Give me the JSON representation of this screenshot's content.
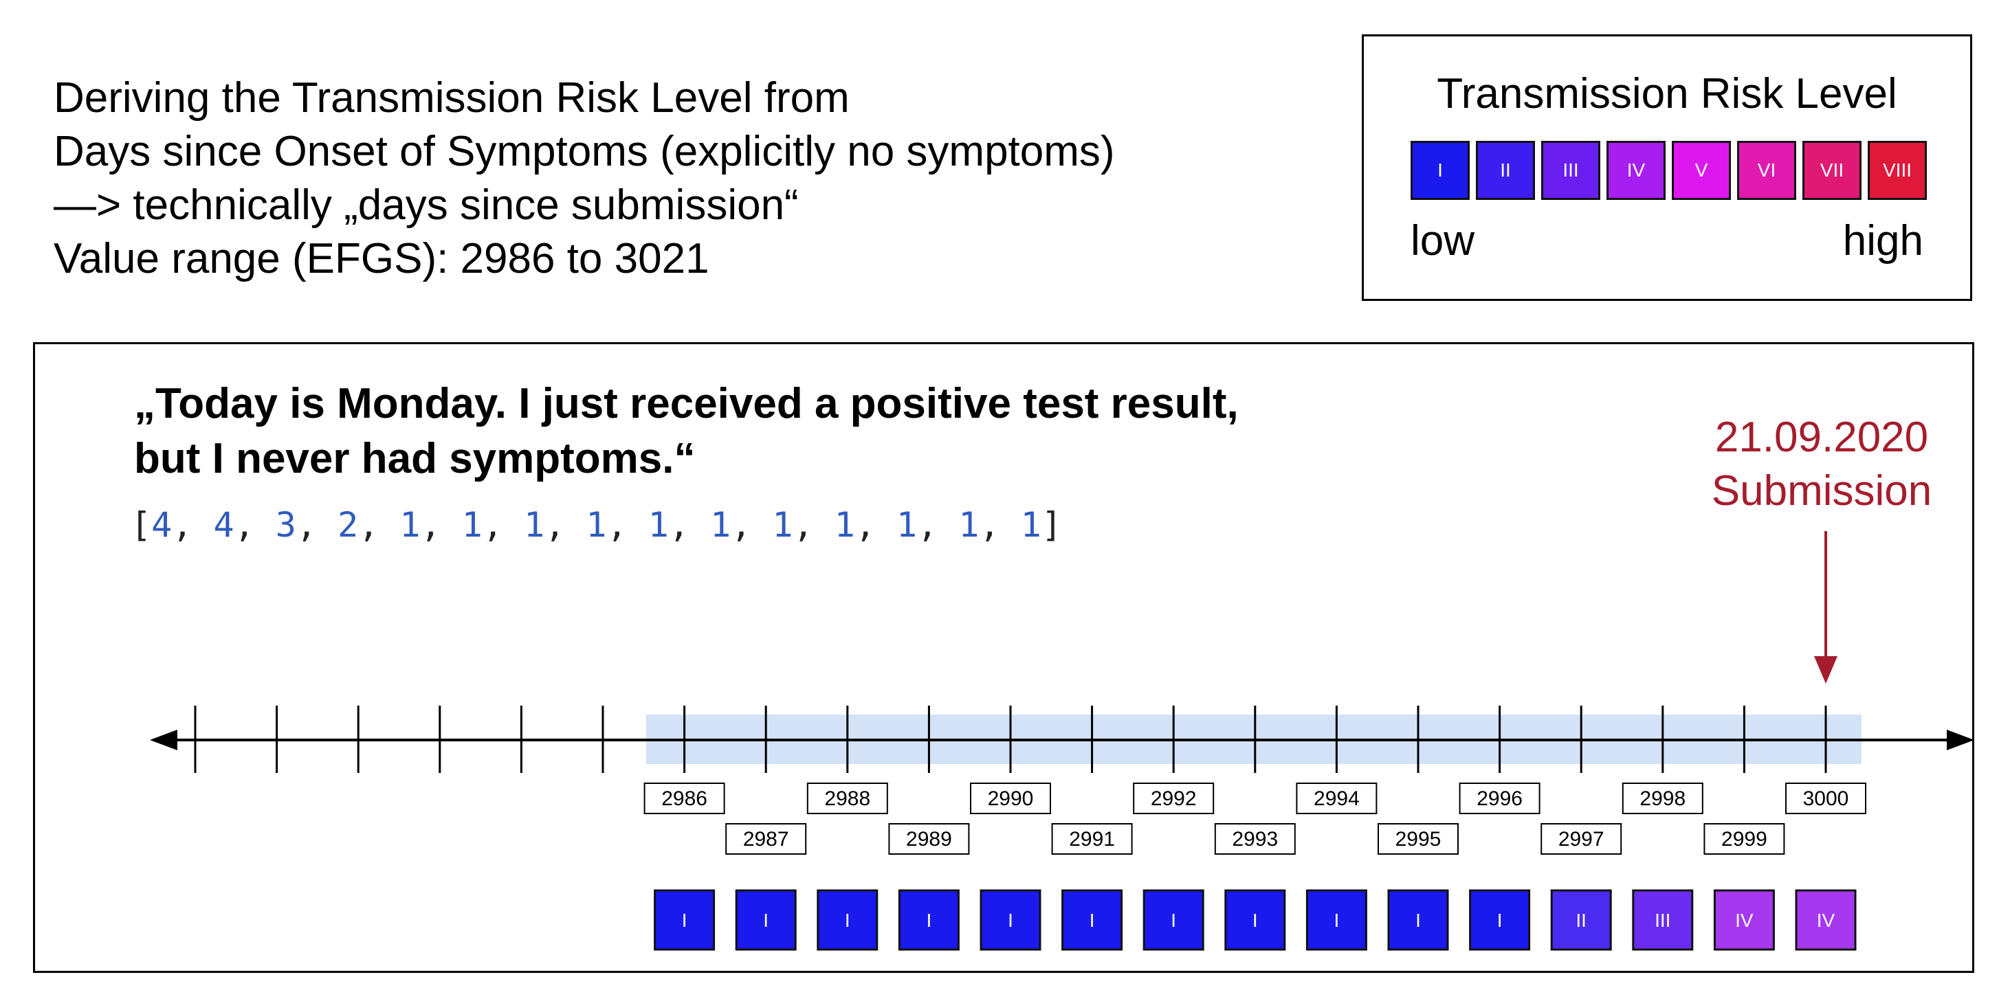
{
  "header": {
    "line1": "Deriving the Transmission Risk Level from",
    "line2": "Days since Onset of Symptoms (explicitly no symptoms)",
    "line3": "—> technically „days since submission“",
    "line4": "Value range (EFGS): 2986 to 3021"
  },
  "legend": {
    "title": "Transmission Risk Level",
    "low": "low",
    "high": "high",
    "levels": [
      {
        "label": "I",
        "color": "#1a1aee"
      },
      {
        "label": "II",
        "color": "#3d1ef0"
      },
      {
        "label": "III",
        "color": "#6a1ef0"
      },
      {
        "label": "IV",
        "color": "#a61ef0"
      },
      {
        "label": "V",
        "color": "#dc18ee"
      },
      {
        "label": "VI",
        "color": "#e01aae"
      },
      {
        "label": "VII",
        "color": "#e01a74"
      },
      {
        "label": "VIII",
        "color": "#e0183a"
      }
    ]
  },
  "scenario": {
    "quote_line1": "„Today is Monday. I just received a positive test result,",
    "quote_line2": "but I never had symptoms.“",
    "array_values": [
      "4",
      "4",
      "3",
      "2",
      "1",
      "1",
      "1",
      "1",
      "1",
      "1",
      "1",
      "1",
      "1",
      "1",
      "1"
    ],
    "submission_date": "21.09.2020",
    "submission_label": "Submission"
  },
  "timeline": {
    "day_labels": [
      "2986",
      "2987",
      "2988",
      "2989",
      "2990",
      "2991",
      "2992",
      "2993",
      "2994",
      "2995",
      "2996",
      "2997",
      "2998",
      "2999",
      "3000"
    ],
    "risk_levels": [
      "I",
      "I",
      "I",
      "I",
      "I",
      "I",
      "I",
      "I",
      "I",
      "I",
      "I",
      "II",
      "III",
      "IV",
      "IV"
    ],
    "risk_colors": [
      "#1a1aee",
      "#1a1aee",
      "#1a1aee",
      "#1a1aee",
      "#1a1aee",
      "#1a1aee",
      "#1a1aee",
      "#1a1aee",
      "#1a1aee",
      "#1a1aee",
      "#1a1aee",
      "#4a2cf0",
      "#6a2cf0",
      "#a638f0",
      "#a638f0"
    ],
    "highlight_color": "#d4e2f7",
    "arrow_color": "#a51d2d"
  }
}
